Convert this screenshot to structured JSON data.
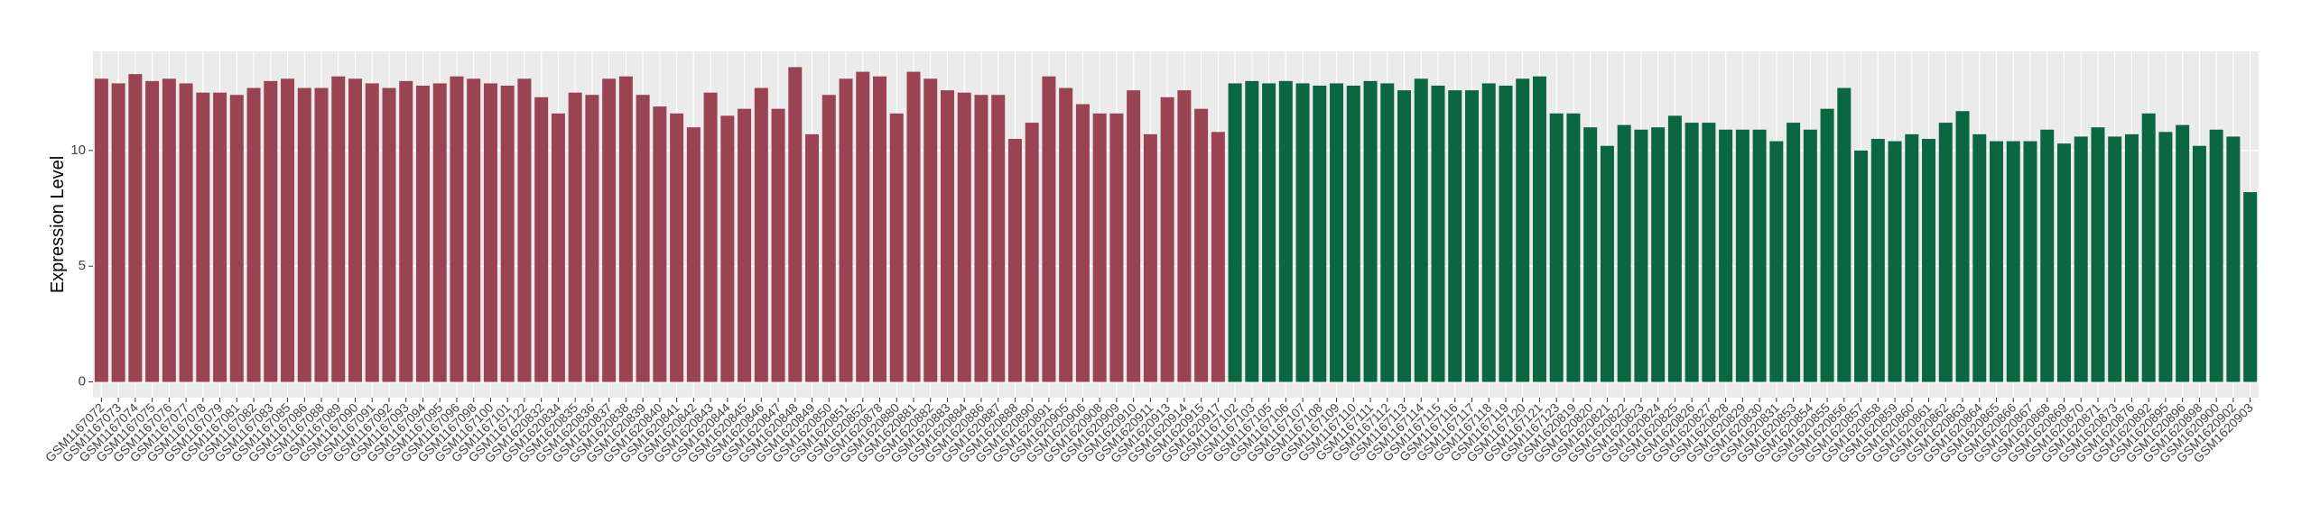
{
  "chart_data": {
    "type": "bar",
    "ylabel": "Expression Level",
    "categories": [
      "GSM1167072",
      "GSM1167073",
      "GSM1167074",
      "GSM1167075",
      "GSM1167076",
      "GSM1167077",
      "GSM1167078",
      "GSM1167079",
      "GSM1167081",
      "GSM1167082",
      "GSM1167083",
      "GSM1167085",
      "GSM1167086",
      "GSM1167088",
      "GSM1167089",
      "GSM1167090",
      "GSM1167091",
      "GSM1167092",
      "GSM1167093",
      "GSM1167094",
      "GSM1167095",
      "GSM1167096",
      "GSM1167098",
      "GSM1167100",
      "GSM1167101",
      "GSM1167122",
      "GSM1620832",
      "GSM1620834",
      "GSM1620835",
      "GSM1620836",
      "GSM1620837",
      "GSM1620838",
      "GSM1620839",
      "GSM1620840",
      "GSM1620841",
      "GSM1620842",
      "GSM1620843",
      "GSM1620844",
      "GSM1620845",
      "GSM1620846",
      "GSM1620847",
      "GSM1620848",
      "GSM1620849",
      "GSM1620850",
      "GSM1620851",
      "GSM1620852",
      "GSM1620878",
      "GSM1620880",
      "GSM1620881",
      "GSM1620882",
      "GSM1620883",
      "GSM1620884",
      "GSM1620886",
      "GSM1620887",
      "GSM1620888",
      "GSM1620890",
      "GSM1620891",
      "GSM1620905",
      "GSM1620906",
      "GSM1620908",
      "GSM1620909",
      "GSM1620910",
      "GSM1620911",
      "GSM1620913",
      "GSM1620914",
      "GSM1620915",
      "GSM1620917",
      "GSM1167102",
      "GSM1167103",
      "GSM1167105",
      "GSM1167106",
      "GSM1167107",
      "GSM1167108",
      "GSM1167109",
      "GSM1167110",
      "GSM1167111",
      "GSM1167112",
      "GSM1167113",
      "GSM1167114",
      "GSM1167115",
      "GSM1167116",
      "GSM1167117",
      "GSM1167118",
      "GSM1167119",
      "GSM1167120",
      "GSM1167121",
      "GSM1167123",
      "GSM1620819",
      "GSM1620820",
      "GSM1620821",
      "GSM1620822",
      "GSM1620823",
      "GSM1620824",
      "GSM1620825",
      "GSM1620826",
      "GSM1620827",
      "GSM1620828",
      "GSM1620829",
      "GSM1620830",
      "GSM1620831",
      "GSM1620853",
      "GSM1620854",
      "GSM1620855",
      "GSM1620856",
      "GSM1620857",
      "GSM1620858",
      "GSM1620859",
      "GSM1620860",
      "GSM1620861",
      "GSM1620862",
      "GSM1620863",
      "GSM1620864",
      "GSM1620865",
      "GSM1620866",
      "GSM1620867",
      "GSM1620868",
      "GSM1620869",
      "GSM1620870",
      "GSM1620871",
      "GSM1620873",
      "GSM1620876",
      "GSM1620892",
      "GSM1620895",
      "GSM1620896",
      "GSM1620898",
      "GSM1620900",
      "GSM1620902",
      "GSM1620903"
    ],
    "values": [
      13.1,
      12.9,
      13.3,
      13.0,
      13.1,
      12.9,
      12.5,
      12.5,
      12.4,
      12.7,
      13.0,
      13.1,
      12.7,
      12.7,
      13.2,
      13.1,
      12.9,
      12.7,
      13.0,
      12.8,
      12.9,
      13.2,
      13.1,
      12.9,
      12.8,
      13.1,
      12.3,
      11.6,
      12.5,
      12.4,
      13.1,
      13.2,
      12.4,
      11.9,
      11.6,
      11.0,
      12.5,
      11.5,
      11.8,
      12.7,
      11.8,
      13.6,
      10.7,
      12.4,
      13.1,
      13.4,
      13.2,
      11.6,
      13.4,
      13.1,
      12.6,
      12.5,
      12.4,
      12.4,
      10.5,
      11.2,
      13.2,
      12.7,
      12.0,
      11.6,
      11.6,
      12.6,
      10.7,
      12.3,
      12.6,
      11.8,
      10.8,
      12.9,
      13.0,
      12.9,
      13.0,
      12.9,
      12.8,
      12.9,
      12.8,
      13.0,
      12.9,
      12.6,
      13.1,
      12.8,
      12.6,
      12.6,
      12.9,
      12.8,
      13.1,
      13.2,
      11.6,
      11.6,
      11.0,
      10.2,
      11.1,
      10.9,
      11.0,
      11.5,
      11.2,
      11.2,
      10.9,
      10.9,
      10.9,
      10.4,
      11.2,
      10.9,
      11.8,
      12.7,
      10.0,
      10.5,
      10.4,
      10.7,
      10.5,
      11.2,
      11.7,
      10.7,
      10.4,
      10.4,
      10.4,
      10.9,
      10.3,
      10.6,
      11.0,
      10.6,
      10.7,
      11.6,
      10.8,
      11.1,
      10.2,
      10.9,
      10.6,
      8.2
    ],
    "colors": [
      "#9a4352",
      "#9a4352",
      "#9a4352",
      "#9a4352",
      "#9a4352",
      "#9a4352",
      "#9a4352",
      "#9a4352",
      "#9a4352",
      "#9a4352",
      "#9a4352",
      "#9a4352",
      "#9a4352",
      "#9a4352",
      "#9a4352",
      "#9a4352",
      "#9a4352",
      "#9a4352",
      "#9a4352",
      "#9a4352",
      "#9a4352",
      "#9a4352",
      "#9a4352",
      "#9a4352",
      "#9a4352",
      "#9a4352",
      "#9a4352",
      "#9a4352",
      "#9a4352",
      "#9a4352",
      "#9a4352",
      "#9a4352",
      "#9a4352",
      "#9a4352",
      "#9a4352",
      "#9a4352",
      "#9a4352",
      "#9a4352",
      "#9a4352",
      "#9a4352",
      "#9a4352",
      "#9a4352",
      "#9a4352",
      "#9a4352",
      "#9a4352",
      "#9a4352",
      "#9a4352",
      "#9a4352",
      "#9a4352",
      "#9a4352",
      "#9a4352",
      "#9a4352",
      "#9a4352",
      "#9a4352",
      "#9a4352",
      "#9a4352",
      "#9a4352",
      "#9a4352",
      "#9a4352",
      "#9a4352",
      "#9a4352",
      "#9a4352",
      "#9a4352",
      "#9a4352",
      "#9a4352",
      "#9a4352",
      "#9a4352",
      "#0b6642",
      "#0b6642",
      "#0b6642",
      "#0b6642",
      "#0b6642",
      "#0b6642",
      "#0b6642",
      "#0b6642",
      "#0b6642",
      "#0b6642",
      "#0b6642",
      "#0b6642",
      "#0b6642",
      "#0b6642",
      "#0b6642",
      "#0b6642",
      "#0b6642",
      "#0b6642",
      "#0b6642",
      "#0b6642",
      "#0b6642",
      "#0b6642",
      "#0b6642",
      "#0b6642",
      "#0b6642",
      "#0b6642",
      "#0b6642",
      "#0b6642",
      "#0b6642",
      "#0b6642",
      "#0b6642",
      "#0b6642",
      "#0b6642",
      "#0b6642",
      "#0b6642",
      "#0b6642",
      "#0b6642",
      "#0b6642",
      "#0b6642",
      "#0b6642",
      "#0b6642",
      "#0b6642",
      "#0b6642",
      "#0b6642",
      "#0b6642",
      "#0b6642",
      "#0b6642",
      "#0b6642",
      "#0b6642",
      "#0b6642",
      "#0b6642",
      "#0b6642",
      "#0b6642",
      "#0b6642",
      "#0b6642",
      "#0b6642",
      "#0b6642",
      "#0b6642",
      "#0b6642",
      "#0b6642",
      "#0b6642"
    ],
    "ylim": [
      -0.68,
      14.28
    ],
    "yticks": [
      0,
      5,
      10
    ],
    "grid": true
  }
}
